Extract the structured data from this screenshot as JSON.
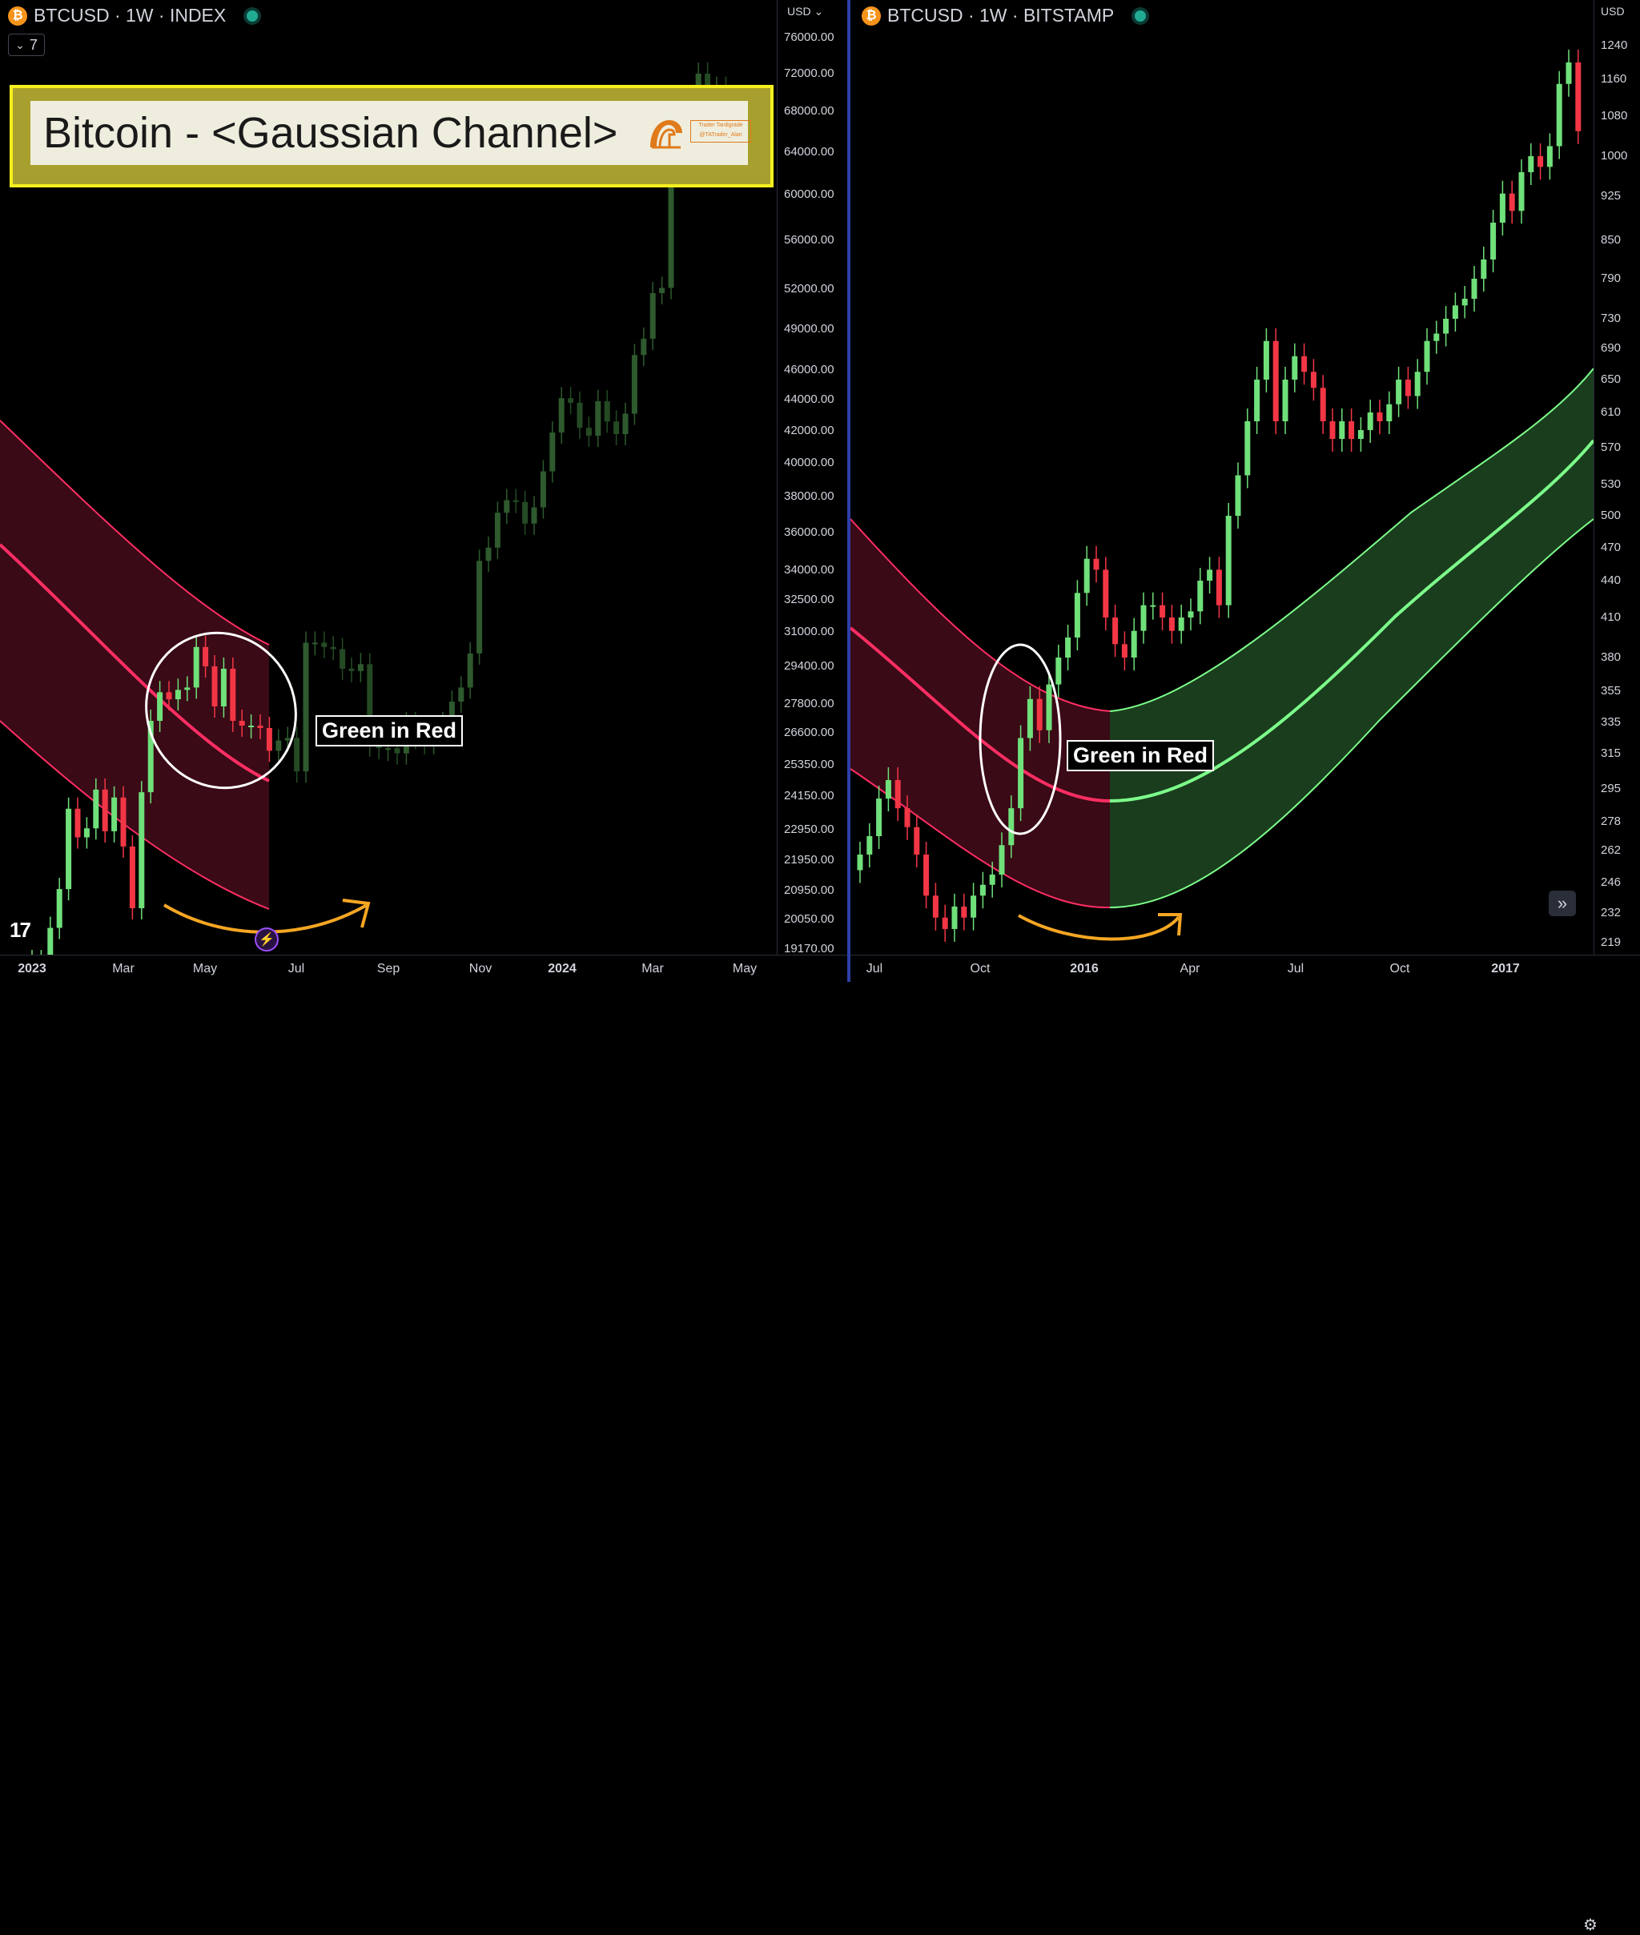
{
  "left_chart": {
    "symbol": "BTCUSD",
    "interval": "1W",
    "exchange": "INDEX",
    "header": "BTCUSD · 1W · INDEX",
    "indicator_count": "7",
    "currency": "USD",
    "title_banner": "Bitcoin - <Gaussian Channel>",
    "watermark": "Trader Tardigrade @TATrader_Alan",
    "annotation": "Green in Red",
    "tv_logo": "17",
    "price_labels": [
      "76000.00",
      "72000.00",
      "68000.00",
      "64000.00",
      "60000.00",
      "56000.00",
      "52000.00",
      "49000.00",
      "46000.00",
      "44000.00",
      "42000.00",
      "40000.00",
      "38000.00",
      "36000.00",
      "34000.00",
      "32500.00",
      "31000.00",
      "29400.00",
      "27800.00",
      "26600.00",
      "25350.00",
      "24150.00",
      "22950.00",
      "21950.00",
      "20950.00",
      "20050.00",
      "19170.00"
    ],
    "time_labels": [
      {
        "text": "2023",
        "bold": true
      },
      {
        "text": "Mar",
        "bold": false
      },
      {
        "text": "May",
        "bold": false
      },
      {
        "text": "Jul",
        "bold": false
      },
      {
        "text": "Sep",
        "bold": false
      },
      {
        "text": "Nov",
        "bold": false
      },
      {
        "text": "2024",
        "bold": true
      },
      {
        "text": "Mar",
        "bold": false
      },
      {
        "text": "May",
        "bold": false
      }
    ]
  },
  "right_chart": {
    "symbol": "BTCUSD",
    "interval": "1W",
    "exchange": "BITSTAMP",
    "header": "BTCUSD · 1W · BITSTAMP",
    "currency": "USD",
    "annotation": "Green in Red",
    "price_labels": [
      "1240",
      "1160",
      "1080",
      "1000",
      "925",
      "850",
      "790",
      "730",
      "690",
      "650",
      "610",
      "570",
      "530",
      "500",
      "470",
      "440",
      "410",
      "380",
      "355",
      "335",
      "315",
      "295",
      "278",
      "262",
      "246",
      "232",
      "219"
    ],
    "time_labels": [
      {
        "text": "Jul",
        "bold": false
      },
      {
        "text": "Oct",
        "bold": false
      },
      {
        "text": "2016",
        "bold": true
      },
      {
        "text": "Apr",
        "bold": false
      },
      {
        "text": "Jul",
        "bold": false
      },
      {
        "text": "Oct",
        "bold": false
      },
      {
        "text": "2017",
        "bold": true
      }
    ]
  },
  "colors": {
    "up": "#6fe07a",
    "down": "#f23645",
    "up_dim": "#1e3f1e",
    "channel_red_fill": "#3a0a16",
    "channel_red_line": "#ff2e63",
    "channel_green_fill": "#1a3d1e",
    "channel_green_line": "#7dff8a",
    "arrow": "#f5a623",
    "highlight": "#f5f01e"
  },
  "chart_data": [
    {
      "type": "candlestick",
      "title": "BTCUSD · 1W · INDEX",
      "overlay": "Gaussian Channel",
      "x_range": [
        "2023-01",
        "2024-05"
      ],
      "ylim": [
        19170,
        76000
      ],
      "y_ticks": [
        76000,
        72000,
        68000,
        64000,
        60000,
        56000,
        52000,
        49000,
        46000,
        44000,
        42000,
        40000,
        38000,
        36000,
        34000,
        32500,
        31000,
        29400,
        27800,
        26600,
        25350,
        24150,
        22950,
        21950,
        20950,
        20050,
        19170
      ],
      "weekly_close": [
        16600,
        17100,
        19800,
        21000,
        23700,
        22700,
        23000,
        24400,
        22900,
        24100,
        22400,
        20400,
        24300,
        27100,
        28300,
        28000,
        28400,
        28500,
        30300,
        29400,
        27700,
        29300,
        27100,
        26900,
        26900,
        26800,
        25900,
        26300,
        26400,
        25100,
        30500,
        30500,
        30300,
        30200,
        29300,
        29200,
        29500,
        26100,
        26000,
        26000,
        25800,
        27000,
        26400,
        26200,
        26800,
        27000,
        27900,
        28500,
        30000,
        34500,
        35200,
        37100,
        37800,
        37700,
        36500,
        37400,
        39500,
        41900,
        44100,
        43800,
        42200,
        41700,
        43900,
        42600,
        41800,
        43100,
        47100,
        48300,
        51700,
        52100,
        62000,
        65000,
        68500,
        72000,
        69000,
        70500,
        70000
      ]
    },
    {
      "type": "candlestick",
      "title": "BTCUSD · 1W · BITSTAMP",
      "overlay": "Gaussian Channel",
      "x_range": [
        "2015-06",
        "2017-02"
      ],
      "ylim": [
        219,
        1240
      ],
      "y_ticks": [
        1240,
        1160,
        1080,
        1000,
        925,
        850,
        790,
        730,
        690,
        650,
        610,
        570,
        530,
        500,
        470,
        440,
        410,
        380,
        355,
        335,
        315,
        295,
        278,
        262,
        246,
        232,
        219
      ],
      "weekly_close": [
        260,
        270,
        290,
        300,
        285,
        275,
        260,
        240,
        230,
        225,
        235,
        230,
        240,
        245,
        250,
        265,
        285,
        325,
        350,
        330,
        360,
        380,
        395,
        430,
        460,
        450,
        410,
        390,
        380,
        400,
        420,
        420,
        410,
        400,
        410,
        415,
        440,
        450,
        420,
        500,
        540,
        600,
        650,
        700,
        600,
        650,
        680,
        660,
        640,
        600,
        580,
        600,
        580,
        590,
        610,
        600,
        620,
        650,
        630,
        660,
        700,
        710,
        730,
        750,
        760,
        790,
        820,
        880,
        930,
        900,
        970,
        1000,
        980,
        1020,
        1150,
        1200,
        1050
      ],
      "channel_state": [
        "red until 2016-01",
        "green after 2016-01"
      ]
    }
  ]
}
